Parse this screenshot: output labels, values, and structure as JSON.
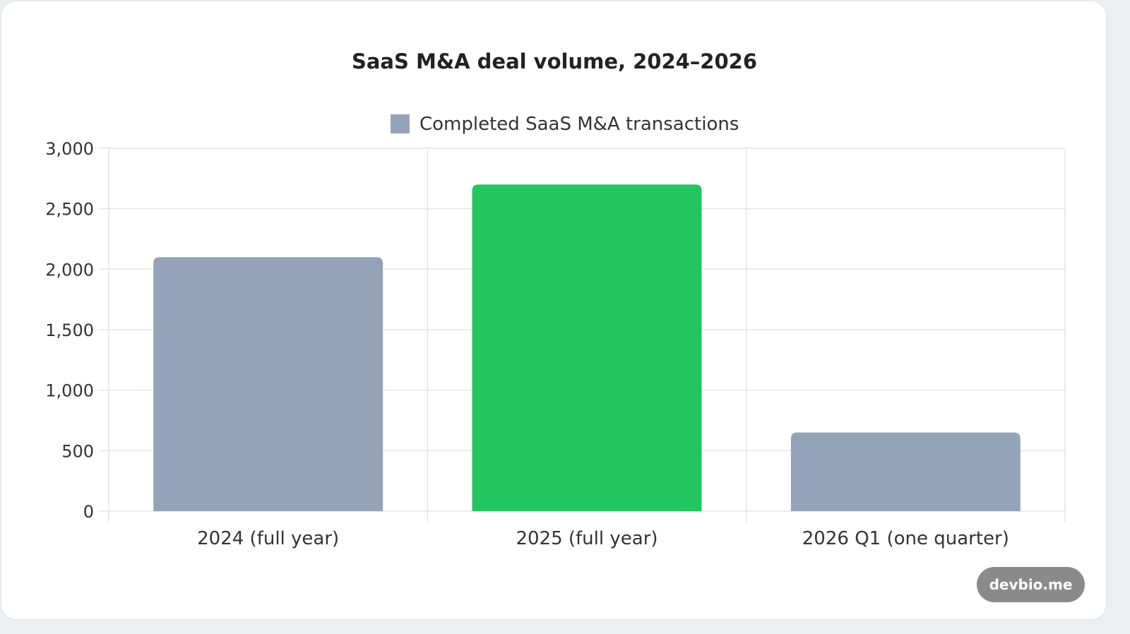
{
  "chart_data": {
    "type": "bar",
    "title": "SaaS M&A deal volume, 2024–2026",
    "categories": [
      "2024 (full year)",
      "2025 (full year)",
      "2026 Q1 (one quarter)"
    ],
    "series": [
      {
        "name": "Completed SaaS M&A transactions",
        "values": [
          2100,
          2700,
          650
        ],
        "colors": [
          "#94a3b8",
          "#22c55e",
          "#94a3b8"
        ]
      }
    ],
    "ylim": [
      0,
      3000
    ],
    "yticks": [
      0,
      500,
      1000,
      1500,
      2000,
      2500,
      3000
    ],
    "ytick_labels": [
      "0",
      "500",
      "1,000",
      "1,500",
      "2,000",
      "2,500",
      "3,000"
    ],
    "xlabel": "",
    "ylabel": "",
    "grid": true,
    "legend_position": "top-center",
    "legend_color": "#94a3b8"
  },
  "watermark": "devbio.me"
}
